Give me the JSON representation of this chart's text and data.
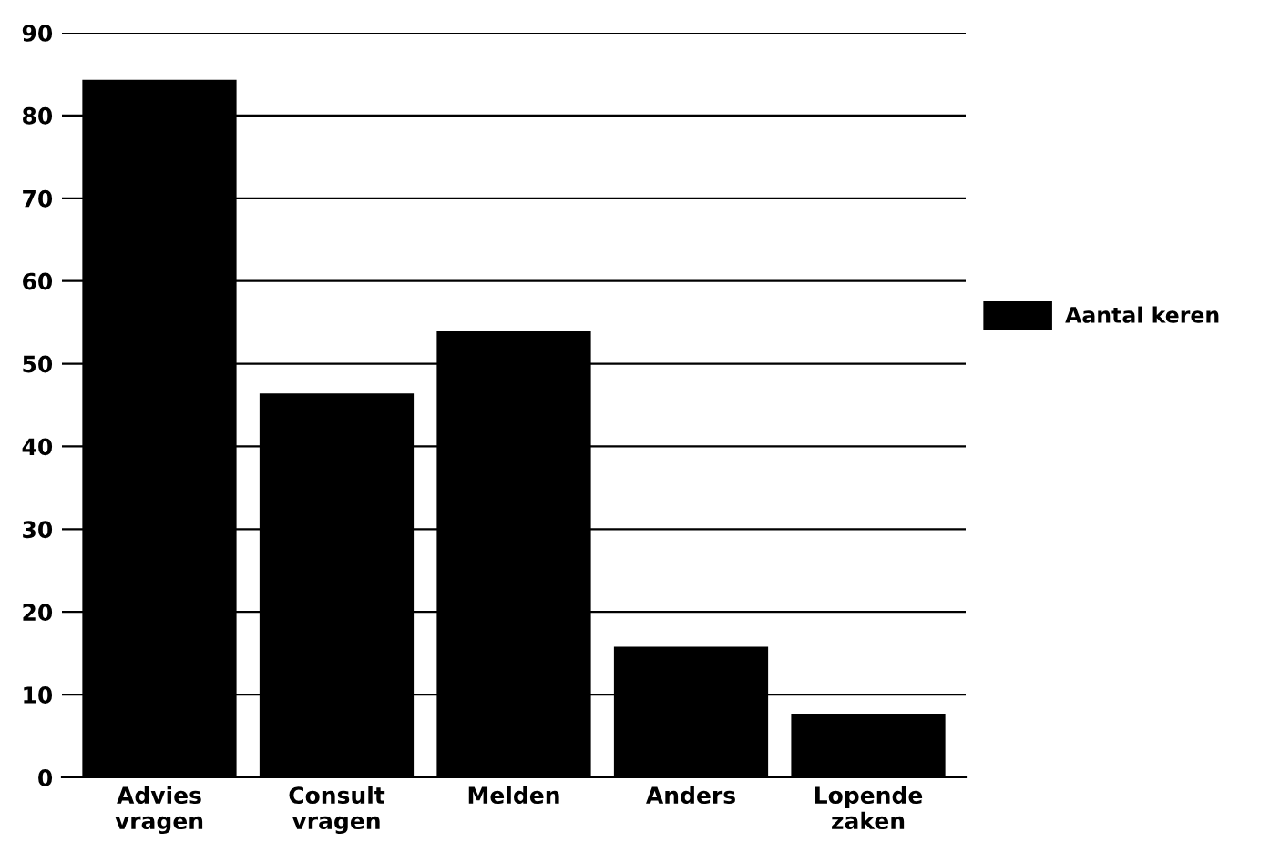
{
  "chart_data": {
    "type": "bar",
    "categories": [
      "Advies\nvragen",
      "Consult\nvragen",
      "Melden",
      "Anders",
      "Lopende\nzaken"
    ],
    "series": [
      {
        "name": "Aantal keren",
        "color": "#000000",
        "values": [
          84.3,
          46.4,
          53.9,
          15.8,
          7.7
        ]
      }
    ],
    "ylim": [
      0,
      90
    ],
    "yticks": [
      0,
      10,
      20,
      30,
      40,
      50,
      60,
      70,
      80,
      90
    ],
    "grid": "y",
    "legend": "right"
  }
}
